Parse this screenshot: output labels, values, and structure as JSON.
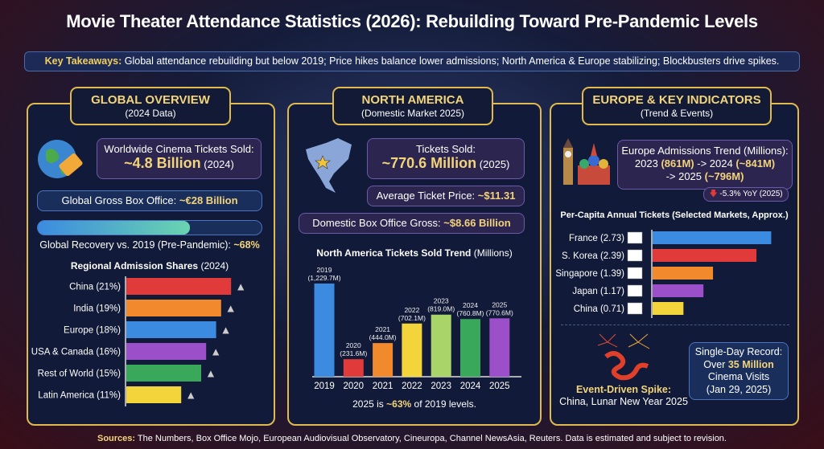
{
  "title": "Movie Theater Attendance Statistics (2026): Rebuilding Toward Pre-Pandemic Levels",
  "takeaways": {
    "label": "Key Takeaways:",
    "text": "Global attendance rebuilding but below 2019; Price hikes balance lower admissions; North America & Europe stabilizing; Blockbusters drive spikes."
  },
  "global": {
    "title": "GLOBAL OVERVIEW",
    "subtitle": "(2024 Data)",
    "tickets_label": "Worldwide Cinema Tickets Sold:",
    "tickets_value": "~4.8 Billion",
    "tickets_year": "(2024)",
    "gross_label": "Global Gross Box Office:",
    "gross_value": "~€28 Billion",
    "recovery_label": "Global Recovery vs. 2019 (Pre-Pandemic):",
    "recovery_value": "~68%",
    "recovery_fraction": 0.68,
    "icons": [
      "globe-icon",
      "ticket-icon"
    ]
  },
  "north_america": {
    "title": "NORTH AMERICA",
    "subtitle": "(Domestic Market 2025)",
    "tickets_label": "Tickets Sold:",
    "tickets_value": "~770.6 Million",
    "tickets_year": "(2025)",
    "price_label": "Average Ticket Price:",
    "price_value": "~$11.31",
    "gross_label": "Domestic Box Office Gross:",
    "gross_value": "~$8.66 Billion",
    "footnote_pre": "2025 is",
    "footnote_value": "~63%",
    "footnote_post": "of 2019 levels."
  },
  "europe": {
    "title": "EUROPE & KEY INDICATORS",
    "subtitle": "(Trend & Events)",
    "trend_label": "Europe Admissions Trend (Millions):",
    "y2023": "2023",
    "v2023": "(861M)",
    "y2024": "-> 2024",
    "v2024": "(~841M)",
    "y2025": "-> 2025",
    "v2025": "(~796M)",
    "yoy": "-5.3% YoY (2025)",
    "event_title": "Event-Driven Spike:",
    "event_text": "China, Lunar New Year 2025",
    "record_l1": "Single-Day Record:",
    "record_pre": "Over",
    "record_value": "35 Million",
    "record_l3": "Cinema Visits",
    "record_l4": "(Jan 29, 2025)"
  },
  "sources": {
    "label": "Sources:",
    "text": "The Numbers, Box Office Mojo, European Audiovisual Observatory, Cineuropa, Channel NewsAsia, Reuters. Data is estimated and subject to revision."
  },
  "chart_data": [
    {
      "type": "bar",
      "orientation": "horizontal",
      "title": "Regional Admission Shares",
      "title_suffix": "(2024)",
      "unit": "%",
      "categories": [
        "China (21%)",
        "India (19%)",
        "Europe (18%)",
        "USA & Canada (16%)",
        "Rest of World (15%)",
        "Latin America (11%)"
      ],
      "values": [
        21,
        19,
        18,
        16,
        15,
        11
      ],
      "colors": [
        "#e03a3a",
        "#f08a2c",
        "#3b8be0",
        "#9b4fc8",
        "#3aa85a",
        "#f3d43a"
      ],
      "icons": [
        "pagoda-icon",
        "taj-mahal-icon",
        "eiffel-tower-icon",
        "statue-of-liberty-icon",
        "globe-icon",
        "christ-redeemer-icon"
      ]
    },
    {
      "type": "bar",
      "title": "North America Tickets Sold Trend",
      "title_suffix": "(Millions)",
      "categories": [
        "2019",
        "2020",
        "2021",
        "2022",
        "2023",
        "2024",
        "2025"
      ],
      "values": [
        1229.7,
        231.6,
        444.0,
        702.1,
        819.0,
        760.8,
        770.6
      ],
      "data_labels": [
        "(1,229.7M)",
        "(231.6M)",
        "(444.0M)",
        "(702.1M)",
        "(819.0M)",
        "(760.8M)",
        "(770.6M)"
      ],
      "colors": [
        "#3b8be0",
        "#e03a3a",
        "#f08a2c",
        "#f3d43a",
        "#a8d46a",
        "#3aa85a",
        "#9b4fc8"
      ]
    },
    {
      "type": "bar",
      "orientation": "horizontal",
      "title": "Per-Capita Annual Tickets (Selected Markets, Approx.)",
      "categories": [
        "France (2.73)",
        "S. Korea (2.39)",
        "Singapore (1.39)",
        "Japan (1.17)",
        "China (0.71)"
      ],
      "values": [
        2.73,
        2.39,
        1.39,
        1.17,
        0.71
      ],
      "colors": [
        "#3b8be0",
        "#e03a3a",
        "#f08a2c",
        "#9b4fc8",
        "#f3d43a"
      ],
      "icons": [
        "flag-france-icon",
        "flag-south-korea-icon",
        "flag-singapore-icon",
        "flag-japan-icon",
        "flag-china-icon"
      ]
    }
  ]
}
